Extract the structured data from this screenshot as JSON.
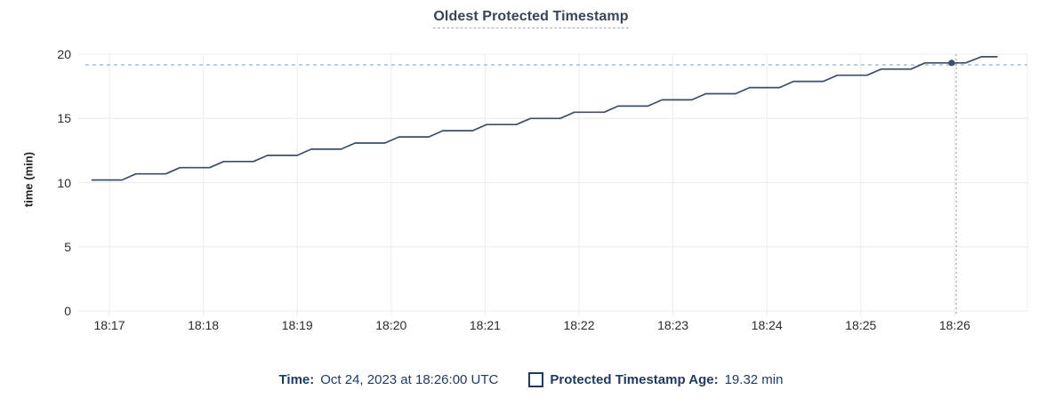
{
  "title": "Oldest Protected Timestamp",
  "footer": {
    "time_label": "Time:",
    "time_value": "Oct 24, 2023 at 18:26:00 UTC",
    "series_label": "Protected Timestamp Age:",
    "series_value": "19.32 min",
    "series_checkbox_state": "outlined-unfilled"
  },
  "chart_data": {
    "type": "line",
    "title": "Oldest Protected Timestamp",
    "xlabel": "",
    "ylabel": "time (min)",
    "ylim": [
      0,
      20
    ],
    "yticks": [
      0,
      5,
      10,
      15,
      20
    ],
    "x_tick_labels": [
      "18:17",
      "18:18",
      "18:19",
      "18:20",
      "18:21",
      "18:22",
      "18:23",
      "18:24",
      "18:25",
      "18:26"
    ],
    "x_tick_seconds": [
      0,
      60,
      120,
      180,
      240,
      300,
      360,
      420,
      480,
      540
    ],
    "grid": true,
    "legend_position": "bottom",
    "series": [
      {
        "name": "Protected Timestamp Age",
        "unit": "min",
        "color": "#3d4d68",
        "points_t_seconds_value_min": [
          [
            -11,
            10.2
          ],
          [
            8,
            10.2
          ],
          [
            17,
            10.68
          ],
          [
            36,
            10.68
          ],
          [
            45,
            11.16
          ],
          [
            64,
            11.16
          ],
          [
            73,
            11.64
          ],
          [
            92,
            11.64
          ],
          [
            101,
            12.12
          ],
          [
            120,
            12.12
          ],
          [
            129,
            12.6
          ],
          [
            148,
            12.6
          ],
          [
            157,
            13.08
          ],
          [
            176,
            13.08
          ],
          [
            185,
            13.56
          ],
          [
            204,
            13.56
          ],
          [
            213,
            14.04
          ],
          [
            232,
            14.04
          ],
          [
            241,
            14.52
          ],
          [
            260,
            14.52
          ],
          [
            269,
            15.0
          ],
          [
            288,
            15.0
          ],
          [
            297,
            15.48
          ],
          [
            316,
            15.48
          ],
          [
            325,
            15.96
          ],
          [
            344,
            15.96
          ],
          [
            353,
            16.44
          ],
          [
            372,
            16.44
          ],
          [
            381,
            16.92
          ],
          [
            400,
            16.92
          ],
          [
            409,
            17.4
          ],
          [
            428,
            17.4
          ],
          [
            437,
            17.88
          ],
          [
            456,
            17.88
          ],
          [
            465,
            18.36
          ],
          [
            484,
            18.36
          ],
          [
            493,
            18.84
          ],
          [
            512,
            18.84
          ],
          [
            521,
            19.32
          ],
          [
            547,
            19.32
          ],
          [
            557,
            19.8
          ],
          [
            567,
            19.8
          ]
        ]
      }
    ],
    "hover": {
      "time_value": "Oct 24, 2023 at 18:26:00 UTC",
      "point_seconds": 538,
      "point_value_min": 19.32,
      "crosshair_x_seconds": 541,
      "crosshair_y_min": 19.17
    },
    "colors": {
      "line": "#3d4d68",
      "hover_dot": "#3d4d68",
      "crosshair": "#9db0bf",
      "grid": "#ececec",
      "tick_text": "#2b2b2b",
      "title_text": "#394455",
      "footer_text": "#1e3a5f"
    }
  }
}
